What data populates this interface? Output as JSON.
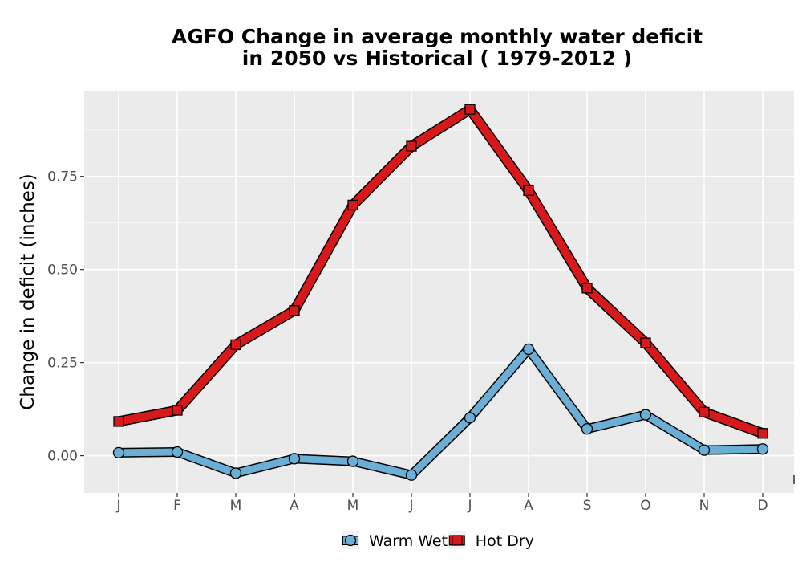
{
  "chart_data": {
    "type": "line",
    "title_line1": "AGFO  Change in average monthly water deficit",
    "title_line2": "in 2050 vs Historical ( 1979-2012 )",
    "xlabel": "",
    "ylabel": "Change in deficit (inches)",
    "categories": [
      "J",
      "F",
      "M",
      "A",
      "M",
      "J",
      "J",
      "A",
      "S",
      "O",
      "N",
      "D"
    ],
    "ylim": [
      -0.1,
      0.98
    ],
    "yticks": [
      0.0,
      0.25,
      0.5,
      0.75
    ],
    "ytick_labels": [
      "0.00",
      "0.25",
      "0.50",
      "0.75"
    ],
    "grid": true,
    "legend_position": "bottom",
    "series": [
      {
        "name": "Warm Wet",
        "color": "#6baed6",
        "marker": "circle",
        "values": [
          0.008,
          0.01,
          -0.047,
          -0.008,
          -0.015,
          -0.052,
          0.102,
          0.286,
          0.072,
          0.11,
          0.015,
          0.018
        ]
      },
      {
        "name": "Hot Dry",
        "color": "#d7191c",
        "marker": "square",
        "values": [
          0.092,
          0.122,
          0.298,
          0.39,
          0.673,
          0.831,
          0.93,
          0.712,
          0.45,
          0.303,
          0.117,
          0.06
        ]
      }
    ]
  }
}
